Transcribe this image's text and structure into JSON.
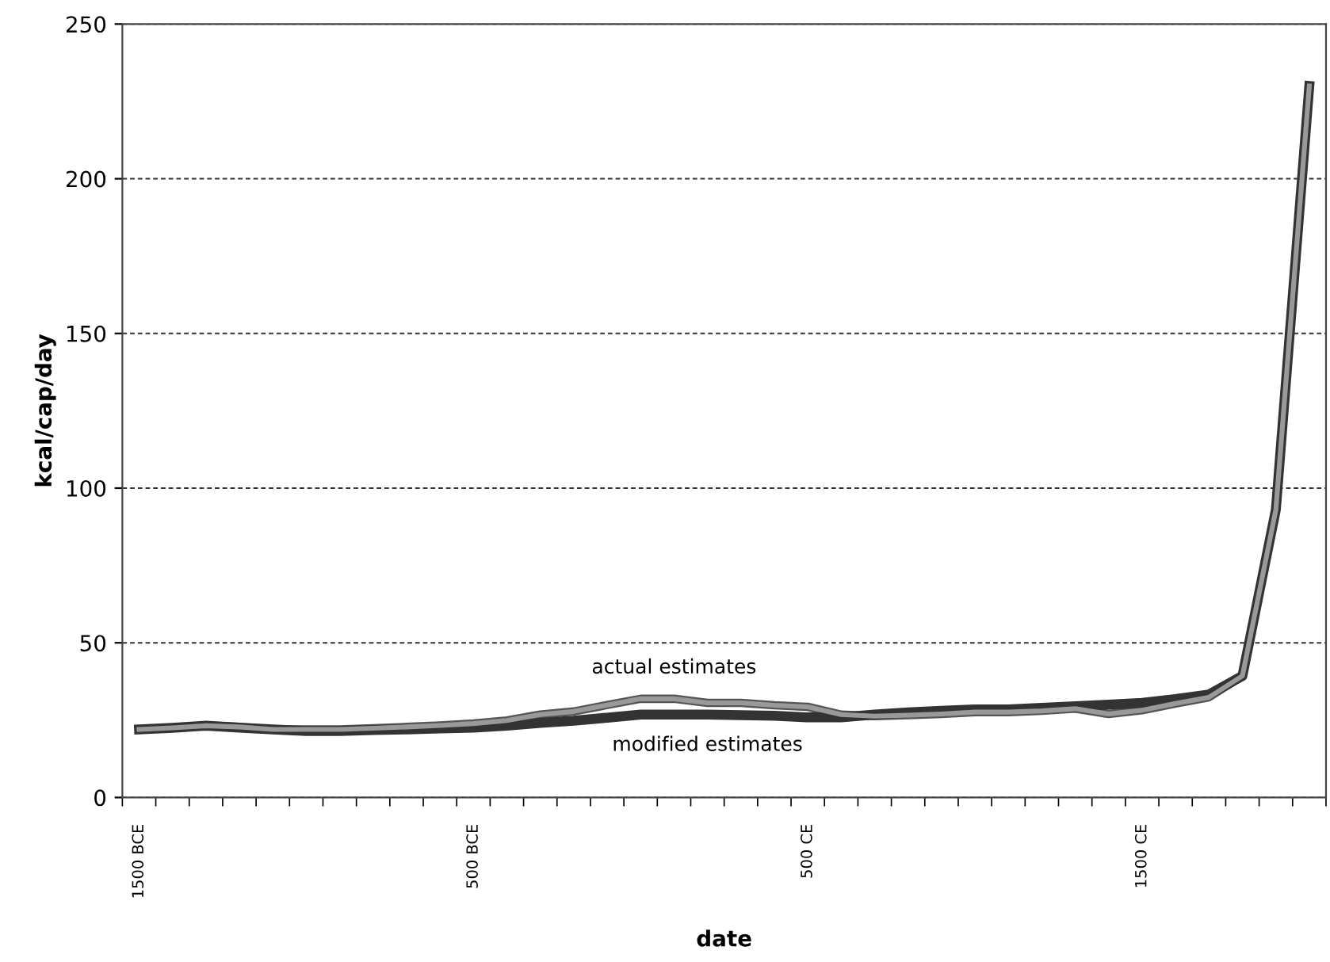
{
  "chart_data": {
    "type": "line",
    "xlabel": "date",
    "ylabel": "kcal/cap/day",
    "categories": [
      "1500 BCE",
      null,
      null,
      null,
      null,
      null,
      null,
      null,
      null,
      null,
      "500 BCE",
      null,
      null,
      null,
      null,
      null,
      null,
      null,
      null,
      null,
      "500 CE",
      null,
      null,
      null,
      null,
      null,
      null,
      null,
      null,
      null,
      "1500 CE",
      null,
      null,
      null,
      null,
      null
    ],
    "ylim": [
      0,
      250
    ],
    "yticks": [
      0,
      50,
      100,
      150,
      200,
      250
    ],
    "grid": "y",
    "legend": false,
    "marker": "none",
    "line_style": "solid",
    "series": [
      {
        "name": "actual estimates",
        "color": "#999999",
        "values": [
          22,
          22.5,
          23.2,
          22.8,
          22,
          22,
          22,
          22.4,
          22.8,
          23.3,
          23.9,
          24.9,
          26.8,
          27.8,
          29.9,
          31.9,
          31.9,
          30.6,
          30.6,
          29.8,
          29.3,
          26.8,
          26.3,
          26.6,
          27,
          27.6,
          27.6,
          28,
          28.7,
          27,
          28.2,
          30.4,
          32.4,
          39.3,
          93,
          230
        ]
      },
      {
        "name": "modified estimates",
        "color": "#333333",
        "values": [
          22,
          22.5,
          23.2,
          22.6,
          22,
          21.5,
          21.5,
          21.8,
          22,
          22.3,
          22.6,
          23.2,
          24.1,
          24.8,
          25.8,
          26.8,
          26.8,
          26.8,
          26.6,
          26.4,
          25.9,
          25.9,
          26.8,
          27.5,
          28,
          28.5,
          28.5,
          29,
          29.5,
          30,
          30.6,
          31.8,
          33.3,
          39.3,
          93,
          230
        ]
      }
    ]
  }
}
